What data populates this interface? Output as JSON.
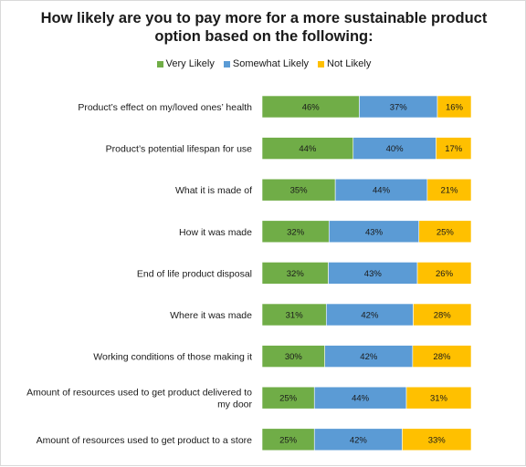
{
  "chart_data": {
    "type": "bar",
    "orientation": "horizontal",
    "stacked": true,
    "title": "How likely are you to pay more for a more sustainable product option based on the following:",
    "legend_position": "top",
    "grid": false,
    "categories": [
      "Product's effect on my/loved ones' health",
      "Product's potential lifespan for use",
      "What it is made of",
      "How it was made",
      "End of life product disposal",
      "Where it was made",
      "Working conditions of those making it",
      "Amount of resources used to get product delivered to my door",
      "Amount of resources used to get product to a store"
    ],
    "category_lines": [
      [
        "Product’s effect on my/loved ones’ health"
      ],
      [
        "Product’s potential lifespan for use"
      ],
      [
        "What it is made of"
      ],
      [
        "How it was made"
      ],
      [
        "End of life product disposal"
      ],
      [
        "Where it was made"
      ],
      [
        "Working conditions of those making it"
      ],
      [
        "Amount of resources used to get product delivered to",
        "my door"
      ],
      [
        "Amount of resources used to get product to a store"
      ]
    ],
    "series": [
      {
        "name": "Very Likely",
        "color": "#70ad47",
        "values": [
          46,
          44,
          35,
          32,
          32,
          31,
          30,
          25,
          25
        ]
      },
      {
        "name": "Somewhat Likely",
        "color": "#5b9bd5",
        "values": [
          37,
          40,
          44,
          43,
          43,
          42,
          42,
          44,
          42
        ]
      },
      {
        "name": "Not Likely",
        "color": "#ffc000",
        "values": [
          16,
          17,
          21,
          25,
          26,
          28,
          28,
          31,
          33
        ]
      }
    ],
    "value_suffix": "%"
  }
}
